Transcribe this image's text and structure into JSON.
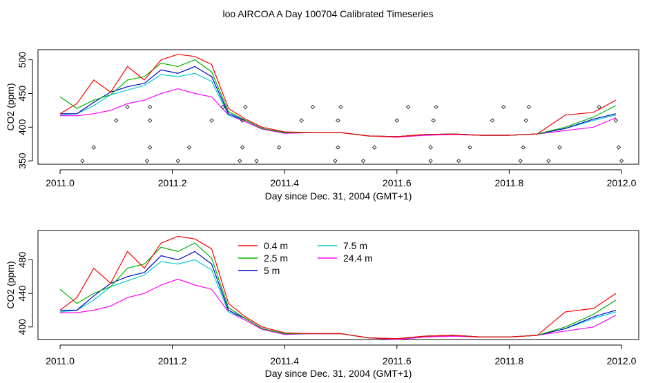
{
  "title": "loo AIRCOA A  Day 100704  Calibrated Timeseries",
  "chart_data": [
    {
      "type": "line",
      "ylabel": "CO2 (ppm)",
      "xlabel": "Day since Dec. 31, 2004 (GMT+1)",
      "xlim": [
        2011.0,
        2012.0
      ],
      "ylim": [
        345,
        515
      ],
      "x_ticks": [
        2011.0,
        2011.2,
        2011.4,
        2011.6,
        2011.8,
        2012.0
      ],
      "y_ticks": [
        350,
        400,
        450,
        500
      ],
      "x_tick_labels": [
        "2011.0",
        "2011.2",
        "2011.4",
        "2011.6",
        "2011.8",
        "2012.0"
      ],
      "y_tick_labels": [
        "350",
        "400",
        "450",
        "500"
      ],
      "grid": false,
      "series": [
        {
          "key": "s04",
          "color": "#ff0000",
          "x": [
            2011.0,
            2011.03,
            2011.06,
            2011.09,
            2011.12,
            2011.15,
            2011.18,
            2011.21,
            2011.24,
            2011.27,
            2011.3,
            2011.33,
            2011.36,
            2011.4,
            2011.45,
            2011.5,
            2011.55,
            2011.6,
            2011.65,
            2011.7,
            2011.75,
            2011.8,
            2011.85,
            2011.9,
            2011.95,
            2011.99
          ],
          "y": [
            420,
            435,
            470,
            452,
            490,
            470,
            500,
            508,
            505,
            493,
            428,
            412,
            400,
            393,
            392,
            392,
            387,
            386,
            389,
            390,
            388,
            388,
            390,
            418,
            422,
            440
          ]
        },
        {
          "key": "s25",
          "color": "#00b000",
          "x": [
            2011.0,
            2011.03,
            2011.06,
            2011.09,
            2011.12,
            2011.15,
            2011.18,
            2011.21,
            2011.24,
            2011.27,
            2011.3,
            2011.33,
            2011.36,
            2011.4,
            2011.45,
            2011.5,
            2011.55,
            2011.6,
            2011.65,
            2011.7,
            2011.75,
            2011.8,
            2011.85,
            2011.9,
            2011.95,
            2011.99
          ],
          "y": [
            445,
            428,
            440,
            448,
            470,
            475,
            495,
            490,
            500,
            482,
            423,
            410,
            398,
            392,
            392,
            392,
            387,
            386,
            389,
            390,
            388,
            388,
            390,
            400,
            415,
            432
          ]
        },
        {
          "key": "s50",
          "color": "#0000cc",
          "x": [
            2011.0,
            2011.03,
            2011.06,
            2011.09,
            2011.12,
            2011.15,
            2011.18,
            2011.21,
            2011.24,
            2011.27,
            2011.3,
            2011.33,
            2011.36,
            2011.4,
            2011.45,
            2011.5,
            2011.55,
            2011.6,
            2011.65,
            2011.7,
            2011.75,
            2011.8,
            2011.85,
            2011.9,
            2011.95,
            2011.99
          ],
          "y": [
            420,
            420,
            437,
            452,
            460,
            465,
            485,
            480,
            490,
            475,
            420,
            410,
            398,
            392,
            392,
            392,
            387,
            386,
            389,
            390,
            388,
            388,
            390,
            398,
            412,
            420
          ]
        },
        {
          "key": "s75",
          "color": "#00cccc",
          "x": [
            2011.0,
            2011.03,
            2011.06,
            2011.09,
            2011.12,
            2011.15,
            2011.18,
            2011.21,
            2011.24,
            2011.27,
            2011.3,
            2011.33,
            2011.36,
            2011.4,
            2011.45,
            2011.5,
            2011.55,
            2011.6,
            2011.65,
            2011.7,
            2011.75,
            2011.8,
            2011.85,
            2011.9,
            2011.95,
            2011.99
          ],
          "y": [
            418,
            420,
            432,
            448,
            455,
            462,
            478,
            475,
            480,
            468,
            418,
            410,
            398,
            392,
            392,
            392,
            387,
            386,
            389,
            390,
            388,
            388,
            390,
            398,
            410,
            418
          ]
        },
        {
          "key": "s244",
          "color": "#ff00ff",
          "x": [
            2011.0,
            2011.03,
            2011.06,
            2011.09,
            2011.12,
            2011.15,
            2011.18,
            2011.21,
            2011.24,
            2011.27,
            2011.3,
            2011.33,
            2011.36,
            2011.4,
            2011.45,
            2011.5,
            2011.55,
            2011.6,
            2011.65,
            2011.7,
            2011.75,
            2011.8,
            2011.85,
            2011.9,
            2011.95,
            2011.99
          ],
          "y": [
            417,
            417,
            420,
            425,
            435,
            440,
            450,
            457,
            450,
            445,
            418,
            408,
            397,
            391,
            392,
            392,
            387,
            385,
            388,
            389,
            388,
            388,
            390,
            395,
            400,
            414
          ]
        }
      ],
      "scatter": {
        "x": [
          2011.04,
          2011.06,
          2011.1,
          2011.12,
          2011.155,
          2011.16,
          2011.16,
          2011.16,
          2011.21,
          2011.23,
          2011.27,
          2011.29,
          2011.32,
          2011.325,
          2011.325,
          2011.33,
          2011.35,
          2011.39,
          2011.43,
          2011.45,
          2011.49,
          2011.495,
          2011.495,
          2011.5,
          2011.54,
          2011.56,
          2011.6,
          2011.62,
          2011.66,
          2011.66,
          2011.665,
          2011.67,
          2011.71,
          2011.73,
          2011.77,
          2011.79,
          2011.82,
          2011.825,
          2011.83,
          2011.835,
          2011.87,
          2011.89,
          2011.96,
          2011.99,
          2011.995,
          2012.0
        ],
        "y": [
          350,
          370,
          410,
          430,
          350,
          370,
          410,
          430,
          350,
          370,
          410,
          430,
          350,
          370,
          410,
          430,
          350,
          370,
          410,
          430,
          350,
          370,
          410,
          430,
          350,
          370,
          410,
          430,
          350,
          370,
          410,
          430,
          350,
          370,
          410,
          430,
          350,
          370,
          410,
          430,
          350,
          370,
          430,
          410,
          370,
          350
        ]
      }
    },
    {
      "type": "line",
      "ylabel": "CO2 (ppm)",
      "xlabel": "Day since Dec. 31, 2004 (GMT+1)",
      "xlim": [
        2011.0,
        2012.0
      ],
      "ylim": [
        385,
        515
      ],
      "x_ticks": [
        2011.0,
        2011.2,
        2011.4,
        2011.6,
        2011.8,
        2012.0
      ],
      "y_ticks": [
        400,
        440,
        480
      ],
      "x_tick_labels": [
        "2011.0",
        "2011.2",
        "2011.4",
        "2011.6",
        "2011.8",
        "2012.0"
      ],
      "y_tick_labels": [
        "400",
        "440",
        "480"
      ],
      "grid": false,
      "legend_position": "top-center",
      "series": [
        {
          "key": "s04",
          "name": "0.4 m",
          "color": "#ff0000",
          "x": [
            2011.0,
            2011.03,
            2011.06,
            2011.09,
            2011.12,
            2011.15,
            2011.18,
            2011.21,
            2011.24,
            2011.27,
            2011.3,
            2011.33,
            2011.36,
            2011.4,
            2011.45,
            2011.5,
            2011.55,
            2011.6,
            2011.65,
            2011.7,
            2011.75,
            2011.8,
            2011.85,
            2011.9,
            2011.95,
            2011.99
          ],
          "y": [
            420,
            435,
            470,
            452,
            490,
            470,
            500,
            508,
            505,
            493,
            428,
            412,
            400,
            393,
            392,
            392,
            387,
            386,
            389,
            390,
            388,
            388,
            390,
            418,
            422,
            440
          ]
        },
        {
          "key": "s25",
          "name": "2.5 m",
          "color": "#00b000",
          "x": [
            2011.0,
            2011.03,
            2011.06,
            2011.09,
            2011.12,
            2011.15,
            2011.18,
            2011.21,
            2011.24,
            2011.27,
            2011.3,
            2011.33,
            2011.36,
            2011.4,
            2011.45,
            2011.5,
            2011.55,
            2011.6,
            2011.65,
            2011.7,
            2011.75,
            2011.8,
            2011.85,
            2011.9,
            2011.95,
            2011.99
          ],
          "y": [
            445,
            428,
            440,
            448,
            470,
            475,
            495,
            490,
            500,
            482,
            423,
            410,
            398,
            392,
            392,
            392,
            387,
            386,
            389,
            390,
            388,
            388,
            390,
            400,
            415,
            432
          ]
        },
        {
          "key": "s50",
          "name": "5 m",
          "color": "#0000cc",
          "x": [
            2011.0,
            2011.03,
            2011.06,
            2011.09,
            2011.12,
            2011.15,
            2011.18,
            2011.21,
            2011.24,
            2011.27,
            2011.3,
            2011.33,
            2011.36,
            2011.4,
            2011.45,
            2011.5,
            2011.55,
            2011.6,
            2011.65,
            2011.7,
            2011.75,
            2011.8,
            2011.85,
            2011.9,
            2011.95,
            2011.99
          ],
          "y": [
            420,
            420,
            437,
            452,
            460,
            465,
            485,
            480,
            490,
            475,
            420,
            410,
            398,
            392,
            392,
            392,
            387,
            386,
            389,
            390,
            388,
            388,
            390,
            398,
            412,
            420
          ]
        },
        {
          "key": "s75",
          "name": "7.5 m",
          "color": "#00cccc",
          "x": [
            2011.0,
            2011.03,
            2011.06,
            2011.09,
            2011.12,
            2011.15,
            2011.18,
            2011.21,
            2011.24,
            2011.27,
            2011.3,
            2011.33,
            2011.36,
            2011.4,
            2011.45,
            2011.5,
            2011.55,
            2011.6,
            2011.65,
            2011.7,
            2011.75,
            2011.8,
            2011.85,
            2011.9,
            2011.95,
            2011.99
          ],
          "y": [
            418,
            420,
            432,
            448,
            455,
            462,
            478,
            475,
            480,
            468,
            418,
            410,
            398,
            392,
            392,
            392,
            387,
            386,
            389,
            390,
            388,
            388,
            390,
            398,
            410,
            418
          ]
        },
        {
          "key": "s244",
          "name": "24.4 m",
          "color": "#ff00ff",
          "x": [
            2011.0,
            2011.03,
            2011.06,
            2011.09,
            2011.12,
            2011.15,
            2011.18,
            2011.21,
            2011.24,
            2011.27,
            2011.3,
            2011.33,
            2011.36,
            2011.4,
            2011.45,
            2011.5,
            2011.55,
            2011.6,
            2011.65,
            2011.7,
            2011.75,
            2011.8,
            2011.85,
            2011.9,
            2011.95,
            2011.99
          ],
          "y": [
            417,
            417,
            420,
            425,
            435,
            440,
            450,
            457,
            450,
            445,
            418,
            408,
            397,
            391,
            392,
            392,
            387,
            385,
            388,
            389,
            388,
            388,
            390,
            395,
            400,
            414
          ]
        }
      ]
    }
  ]
}
